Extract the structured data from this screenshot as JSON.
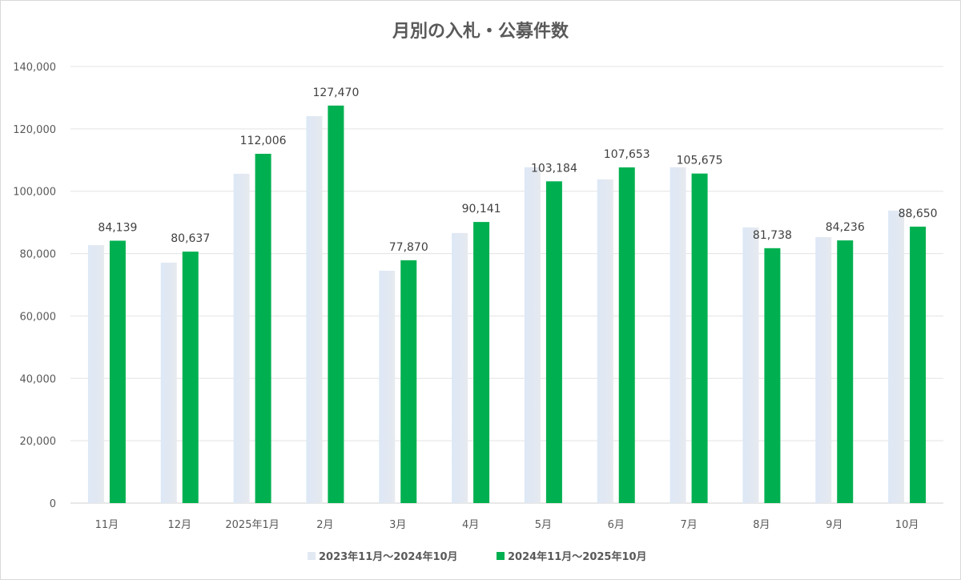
{
  "chart_data": {
    "type": "bar",
    "title": "月別の入札・公募件数",
    "xlabel": "",
    "ylabel": "",
    "ylim": [
      0,
      140000
    ],
    "yticks": [
      "0",
      "20,000",
      "40,000",
      "60,000",
      "80,000",
      "100,000",
      "120,000",
      "140,000"
    ],
    "ytick_values": [
      0,
      20000,
      40000,
      60000,
      80000,
      100000,
      120000,
      140000
    ],
    "grid": true,
    "legend_position": "bottom",
    "categories": [
      "11月",
      "12月",
      "2025年1月",
      "2月",
      "3月",
      "4月",
      "5月",
      "6月",
      "7月",
      "8月",
      "9月",
      "10月"
    ],
    "series": [
      {
        "name": "2023年11月～2024年10月",
        "color": "#e3e9f3",
        "values": [
          82700,
          77100,
          105600,
          124100,
          74500,
          86600,
          107700,
          103800,
          107700,
          88400,
          85300,
          93800
        ],
        "data_labels": false
      },
      {
        "name": "2024年11月～2025年10月",
        "color": "#00b050",
        "values": [
          84139,
          80637,
          112006,
          127470,
          77870,
          90141,
          103184,
          107653,
          105675,
          81738,
          84236,
          88650
        ],
        "labels": [
          "84,139",
          "80,637",
          "112,006",
          "127,470",
          "77,870",
          "90,141",
          "103,184",
          "107,653",
          "105,675",
          "81,738",
          "84,236",
          "88,650"
        ],
        "data_labels": true
      }
    ]
  }
}
